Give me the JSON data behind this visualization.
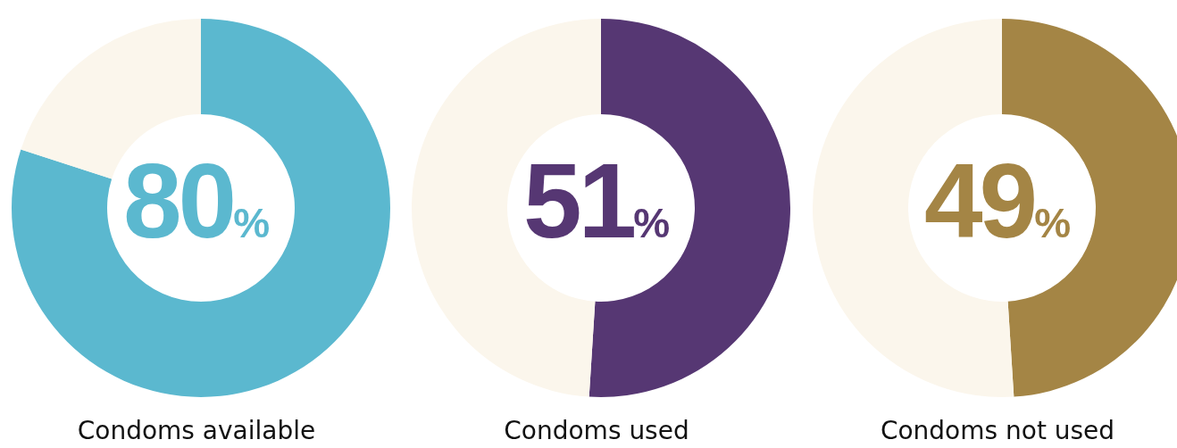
{
  "chart_data": [
    {
      "type": "donut",
      "title": "Condoms available",
      "categories": [
        null,
        null
      ],
      "values": [
        80,
        20
      ],
      "colors": [
        "#5bb8cf",
        "#fbf6ec"
      ],
      "annotations": [
        "80%"
      ]
    },
    {
      "type": "donut",
      "title": "Condoms used",
      "categories": [
        null,
        null
      ],
      "values": [
        51,
        49
      ],
      "colors": [
        "#563773",
        "#fbf6ec"
      ],
      "annotations": [
        "51%"
      ]
    },
    {
      "type": "donut",
      "title": "Condoms not used",
      "categories": [
        null,
        null
      ],
      "values": [
        49,
        51
      ],
      "colors": [
        "#a48545",
        "#fbf6ec"
      ],
      "annotations": [
        "49%"
      ]
    }
  ]
}
